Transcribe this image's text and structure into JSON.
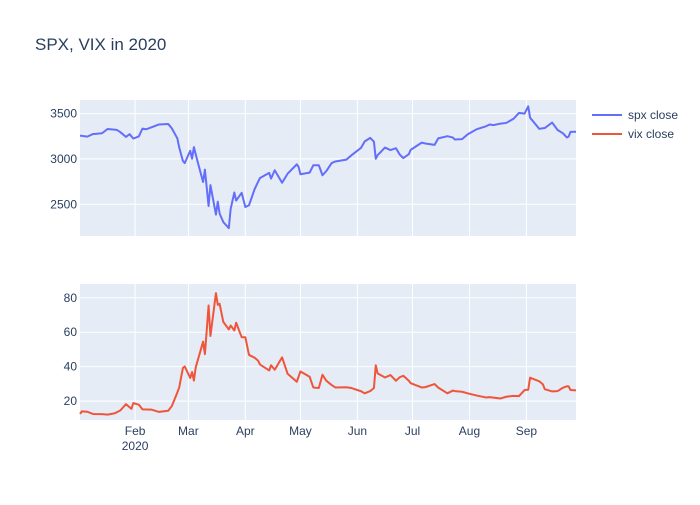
{
  "chart_data": {
    "type": "line",
    "title": "SPX, VIX in 2020",
    "legend_position": "top-right",
    "grid": true,
    "x_tick_labels": [
      {
        "date": "2020-02-01",
        "label": "Feb",
        "sublabel": "2020"
      },
      {
        "date": "2020-03-01",
        "label": "Mar",
        "sublabel": ""
      },
      {
        "date": "2020-04-01",
        "label": "Apr",
        "sublabel": ""
      },
      {
        "date": "2020-05-01",
        "label": "May",
        "sublabel": ""
      },
      {
        "date": "2020-06-01",
        "label": "Jun",
        "sublabel": ""
      },
      {
        "date": "2020-07-01",
        "label": "Jul",
        "sublabel": ""
      },
      {
        "date": "2020-08-01",
        "label": "Aug",
        "sublabel": ""
      },
      {
        "date": "2020-09-01",
        "label": "Sep",
        "sublabel": ""
      }
    ],
    "xlim": [
      "2020-01-02",
      "2020-09-28"
    ],
    "panels": [
      {
        "series_index": 0,
        "ylim": [
          2150,
          3650
        ],
        "yticks": [
          2500,
          3000,
          3500
        ]
      },
      {
        "series_index": 1,
        "ylim": [
          9,
          88
        ],
        "yticks": [
          20,
          40,
          60,
          80
        ]
      }
    ],
    "series": [
      {
        "name": "spx close",
        "color": "#636efa",
        "points": [
          [
            "2020-01-02",
            3257
          ],
          [
            "2020-01-06",
            3246
          ],
          [
            "2020-01-09",
            3274
          ],
          [
            "2020-01-14",
            3283
          ],
          [
            "2020-01-17",
            3330
          ],
          [
            "2020-01-22",
            3321
          ],
          [
            "2020-01-24",
            3295
          ],
          [
            "2020-01-27",
            3243
          ],
          [
            "2020-01-29",
            3273
          ],
          [
            "2020-01-31",
            3225
          ],
          [
            "2020-02-03",
            3248
          ],
          [
            "2020-02-05",
            3334
          ],
          [
            "2020-02-07",
            3327
          ],
          [
            "2020-02-11",
            3357
          ],
          [
            "2020-02-14",
            3380
          ],
          [
            "2020-02-19",
            3386
          ],
          [
            "2020-02-21",
            3337
          ],
          [
            "2020-02-24",
            3226
          ],
          [
            "2020-02-25",
            3128
          ],
          [
            "2020-02-27",
            2979
          ],
          [
            "2020-02-28",
            2954
          ],
          [
            "2020-03-02",
            3090
          ],
          [
            "2020-03-03",
            3003
          ],
          [
            "2020-03-04",
            3130
          ],
          [
            "2020-03-06",
            2972
          ],
          [
            "2020-03-09",
            2746
          ],
          [
            "2020-03-10",
            2882
          ],
          [
            "2020-03-12",
            2480
          ],
          [
            "2020-03-13",
            2711
          ],
          [
            "2020-03-16",
            2386
          ],
          [
            "2020-03-17",
            2529
          ],
          [
            "2020-03-18",
            2398
          ],
          [
            "2020-03-20",
            2304
          ],
          [
            "2020-03-23",
            2237
          ],
          [
            "2020-03-24",
            2447
          ],
          [
            "2020-03-26",
            2630
          ],
          [
            "2020-03-27",
            2541
          ],
          [
            "2020-03-30",
            2626
          ],
          [
            "2020-04-01",
            2470
          ],
          [
            "2020-04-03",
            2489
          ],
          [
            "2020-04-06",
            2664
          ],
          [
            "2020-04-08",
            2750
          ],
          [
            "2020-04-09",
            2790
          ],
          [
            "2020-04-14",
            2846
          ],
          [
            "2020-04-15",
            2783
          ],
          [
            "2020-04-17",
            2875
          ],
          [
            "2020-04-21",
            2737
          ],
          [
            "2020-04-24",
            2837
          ],
          [
            "2020-04-29",
            2940
          ],
          [
            "2020-04-30",
            2912
          ],
          [
            "2020-05-01",
            2831
          ],
          [
            "2020-05-06",
            2849
          ],
          [
            "2020-05-08",
            2930
          ],
          [
            "2020-05-11",
            2930
          ],
          [
            "2020-05-13",
            2820
          ],
          [
            "2020-05-15",
            2864
          ],
          [
            "2020-05-18",
            2954
          ],
          [
            "2020-05-20",
            2972
          ],
          [
            "2020-05-26",
            2992
          ],
          [
            "2020-05-29",
            3044
          ],
          [
            "2020-06-03",
            3123
          ],
          [
            "2020-06-05",
            3194
          ],
          [
            "2020-06-08",
            3232
          ],
          [
            "2020-06-10",
            3190
          ],
          [
            "2020-06-11",
            3002
          ],
          [
            "2020-06-12",
            3041
          ],
          [
            "2020-06-16",
            3125
          ],
          [
            "2020-06-19",
            3098
          ],
          [
            "2020-06-22",
            3118
          ],
          [
            "2020-06-24",
            3050
          ],
          [
            "2020-06-26",
            3009
          ],
          [
            "2020-06-29",
            3053
          ],
          [
            "2020-06-30",
            3100
          ],
          [
            "2020-07-06",
            3180
          ],
          [
            "2020-07-08",
            3170
          ],
          [
            "2020-07-13",
            3155
          ],
          [
            "2020-07-15",
            3227
          ],
          [
            "2020-07-20",
            3251
          ],
          [
            "2020-07-23",
            3236
          ],
          [
            "2020-07-24",
            3215
          ],
          [
            "2020-07-28",
            3218
          ],
          [
            "2020-07-31",
            3271
          ],
          [
            "2020-08-05",
            3328
          ],
          [
            "2020-08-10",
            3360
          ],
          [
            "2020-08-12",
            3380
          ],
          [
            "2020-08-14",
            3373
          ],
          [
            "2020-08-18",
            3390
          ],
          [
            "2020-08-21",
            3397
          ],
          [
            "2020-08-25",
            3443
          ],
          [
            "2020-08-28",
            3508
          ],
          [
            "2020-08-31",
            3500
          ],
          [
            "2020-09-02",
            3580
          ],
          [
            "2020-09-03",
            3455
          ],
          [
            "2020-09-08",
            3332
          ],
          [
            "2020-09-10",
            3339
          ],
          [
            "2020-09-11",
            3341
          ],
          [
            "2020-09-15",
            3401
          ],
          [
            "2020-09-18",
            3319
          ],
          [
            "2020-09-21",
            3281
          ],
          [
            "2020-09-23",
            3237
          ],
          [
            "2020-09-24",
            3246
          ],
          [
            "2020-09-25",
            3298
          ],
          [
            "2020-09-28",
            3300
          ]
        ]
      },
      {
        "name": "vix close",
        "color": "#ef553b",
        "points": [
          [
            "2020-01-02",
            12.5
          ],
          [
            "2020-01-03",
            14.0
          ],
          [
            "2020-01-06",
            13.8
          ],
          [
            "2020-01-09",
            12.5
          ],
          [
            "2020-01-14",
            12.4
          ],
          [
            "2020-01-17",
            12.1
          ],
          [
            "2020-01-21",
            12.9
          ],
          [
            "2020-01-24",
            14.6
          ],
          [
            "2020-01-27",
            18.2
          ],
          [
            "2020-01-30",
            15.5
          ],
          [
            "2020-01-31",
            18.8
          ],
          [
            "2020-02-03",
            17.9
          ],
          [
            "2020-02-05",
            15.2
          ],
          [
            "2020-02-10",
            15.0
          ],
          [
            "2020-02-14",
            13.7
          ],
          [
            "2020-02-19",
            14.4
          ],
          [
            "2020-02-21",
            17.1
          ],
          [
            "2020-02-24",
            25.0
          ],
          [
            "2020-02-25",
            27.9
          ],
          [
            "2020-02-27",
            39.2
          ],
          [
            "2020-02-28",
            40.1
          ],
          [
            "2020-03-02",
            33.4
          ],
          [
            "2020-03-03",
            36.8
          ],
          [
            "2020-03-04",
            31.9
          ],
          [
            "2020-03-05",
            39.6
          ],
          [
            "2020-03-09",
            54.5
          ],
          [
            "2020-03-10",
            47.3
          ],
          [
            "2020-03-12",
            75.5
          ],
          [
            "2020-03-13",
            57.8
          ],
          [
            "2020-03-16",
            82.7
          ],
          [
            "2020-03-17",
            75.9
          ],
          [
            "2020-03-18",
            76.5
          ],
          [
            "2020-03-20",
            66.0
          ],
          [
            "2020-03-23",
            61.6
          ],
          [
            "2020-03-24",
            63.9
          ],
          [
            "2020-03-26",
            61.0
          ],
          [
            "2020-03-27",
            65.5
          ],
          [
            "2020-03-30",
            57.1
          ],
          [
            "2020-04-01",
            57.1
          ],
          [
            "2020-04-03",
            46.8
          ],
          [
            "2020-04-06",
            45.2
          ],
          [
            "2020-04-08",
            43.4
          ],
          [
            "2020-04-09",
            41.2
          ],
          [
            "2020-04-14",
            37.8
          ],
          [
            "2020-04-15",
            40.8
          ],
          [
            "2020-04-17",
            38.2
          ],
          [
            "2020-04-21",
            45.4
          ],
          [
            "2020-04-24",
            35.9
          ],
          [
            "2020-04-29",
            31.2
          ],
          [
            "2020-04-30",
            34.2
          ],
          [
            "2020-05-01",
            37.2
          ],
          [
            "2020-05-06",
            34.1
          ],
          [
            "2020-05-08",
            27.9
          ],
          [
            "2020-05-11",
            27.6
          ],
          [
            "2020-05-13",
            35.3
          ],
          [
            "2020-05-15",
            31.9
          ],
          [
            "2020-05-18",
            29.3
          ],
          [
            "2020-05-20",
            27.9
          ],
          [
            "2020-05-26",
            28.0
          ],
          [
            "2020-05-29",
            27.5
          ],
          [
            "2020-06-03",
            25.7
          ],
          [
            "2020-06-05",
            24.5
          ],
          [
            "2020-06-08",
            25.8
          ],
          [
            "2020-06-10",
            27.6
          ],
          [
            "2020-06-11",
            40.8
          ],
          [
            "2020-06-12",
            36.1
          ],
          [
            "2020-06-16",
            33.7
          ],
          [
            "2020-06-19",
            35.1
          ],
          [
            "2020-06-22",
            31.8
          ],
          [
            "2020-06-24",
            33.8
          ],
          [
            "2020-06-26",
            34.7
          ],
          [
            "2020-06-29",
            31.8
          ],
          [
            "2020-06-30",
            30.4
          ],
          [
            "2020-07-06",
            27.9
          ],
          [
            "2020-07-08",
            28.1
          ],
          [
            "2020-07-13",
            29.9
          ],
          [
            "2020-07-15",
            27.8
          ],
          [
            "2020-07-20",
            24.5
          ],
          [
            "2020-07-23",
            26.1
          ],
          [
            "2020-07-24",
            25.8
          ],
          [
            "2020-07-28",
            25.4
          ],
          [
            "2020-07-31",
            24.5
          ],
          [
            "2020-08-05",
            23.2
          ],
          [
            "2020-08-10",
            22.1
          ],
          [
            "2020-08-12",
            22.3
          ],
          [
            "2020-08-14",
            22.0
          ],
          [
            "2020-08-18",
            21.5
          ],
          [
            "2020-08-21",
            22.5
          ],
          [
            "2020-08-25",
            23.0
          ],
          [
            "2020-08-28",
            22.9
          ],
          [
            "2020-08-31",
            26.4
          ],
          [
            "2020-09-02",
            26.6
          ],
          [
            "2020-09-03",
            33.6
          ],
          [
            "2020-09-08",
            31.5
          ],
          [
            "2020-09-10",
            29.7
          ],
          [
            "2020-09-11",
            26.9
          ],
          [
            "2020-09-15",
            25.6
          ],
          [
            "2020-09-18",
            25.8
          ],
          [
            "2020-09-21",
            27.8
          ],
          [
            "2020-09-23",
            28.6
          ],
          [
            "2020-09-24",
            28.5
          ],
          [
            "2020-09-25",
            26.4
          ],
          [
            "2020-09-28",
            26.2
          ]
        ]
      }
    ]
  }
}
